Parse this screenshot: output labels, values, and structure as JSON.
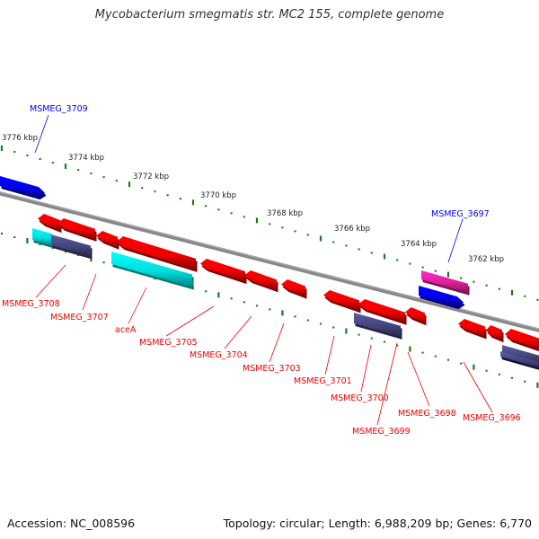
{
  "title": "Mycobacterium smegmatis str. MC2 155, complete genome",
  "footer": {
    "accession": "Accession: NC_008596",
    "topology": "Topology: circular; Length: 6,988,209 bp; Genes: 6,770"
  },
  "colors": {
    "forward_gene": "#0000ee",
    "reverse_gene": "#ee0000",
    "rna_gene": "#00dddd",
    "pseudo_gene": "#44447a",
    "pink_gene": "#e0209a",
    "tick": "#1a7a1a",
    "backbone": "#888888"
  },
  "scale_labels": [
    "3776 kbp",
    "3774 kbp",
    "3772 kbp",
    "3770 kbp",
    "3768 kbp",
    "3766 kbp",
    "3764 kbp",
    "3762 kbp"
  ],
  "gene_labels": {
    "top": [
      "MSMEG_3709",
      "MSMEG_3697"
    ],
    "bottom": [
      "MSMEG_3708",
      "MSMEG_3707",
      "aceA",
      "MSMEG_3705",
      "MSMEG_3704",
      "MSMEG_3703",
      "MSMEG_3701",
      "MSMEG_3700",
      "MSMEG_3699",
      "MSMEG_3698",
      "MSMEG_3696"
    ]
  }
}
